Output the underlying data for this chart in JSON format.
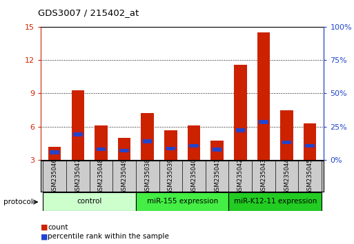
{
  "title": "GDS3007 / 215402_at",
  "samples": [
    "GSM235046",
    "GSM235047",
    "GSM235048",
    "GSM235049",
    "GSM235038",
    "GSM235039",
    "GSM235040",
    "GSM235041",
    "GSM235042",
    "GSM235043",
    "GSM235044",
    "GSM235045"
  ],
  "count_values": [
    4.2,
    9.3,
    6.1,
    5.0,
    7.25,
    5.65,
    6.1,
    4.75,
    11.6,
    14.5,
    7.5,
    6.3
  ],
  "percentile_values": [
    3.5,
    5.1,
    3.8,
    3.7,
    4.5,
    3.85,
    4.1,
    3.75,
    5.5,
    6.2,
    4.4,
    4.1
  ],
  "percentile_heights": [
    0.35,
    0.35,
    0.3,
    0.3,
    0.35,
    0.35,
    0.35,
    0.35,
    0.35,
    0.4,
    0.35,
    0.35
  ],
  "count_color": "#cc2200",
  "percentile_color": "#2244cc",
  "ylim_left": [
    3,
    15
  ],
  "ylim_right": [
    0,
    100
  ],
  "yticks_left": [
    3,
    6,
    9,
    12,
    15
  ],
  "yticks_right": [
    0,
    25,
    50,
    75,
    100
  ],
  "bar_width": 0.55,
  "percentile_bar_width": 0.4,
  "groups": [
    {
      "label": "control",
      "start": 0,
      "end": 4,
      "color": "#ccffcc"
    },
    {
      "label": "miR-155 expression",
      "start": 4,
      "end": 8,
      "color": "#44ee44"
    },
    {
      "label": "miR-K12-11 expression",
      "start": 8,
      "end": 12,
      "color": "#22cc22"
    }
  ],
  "left_axis_color": "#cc2200",
  "right_axis_color": "#2244cc",
  "background_color": "#ffffff",
  "grid_color": "#000000",
  "legend_items": [
    "count",
    "percentile rank within the sample"
  ],
  "protocol_label": "protocol"
}
